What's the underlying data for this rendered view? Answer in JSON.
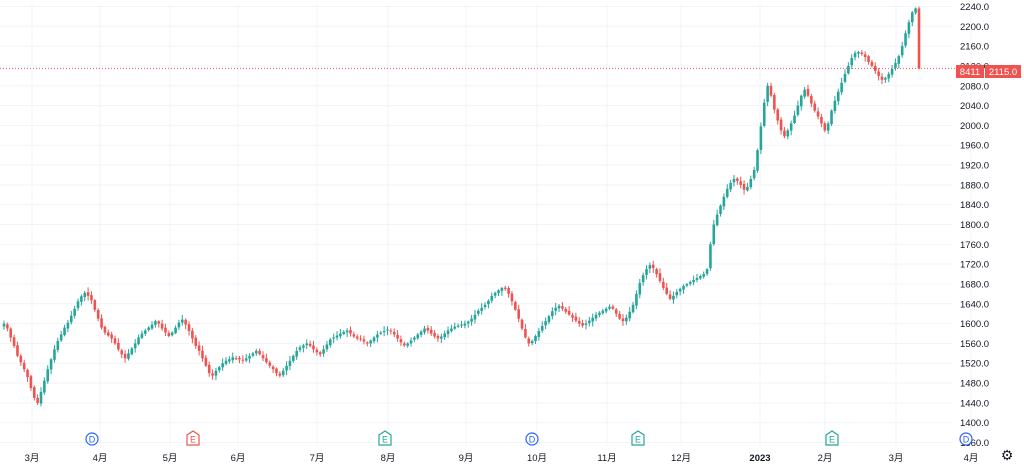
{
  "colors": {
    "up": "#26a69a",
    "down": "#ef5350",
    "grid": "#f0f3fa",
    "text": "#131722",
    "div": "#2962ff",
    "earn_pos": "#26a69a",
    "earn_neg": "#ef5350"
  },
  "price_tag": {
    "volume": "8411",
    "price": "2115.0"
  },
  "settings_icon": "gear-icon",
  "chart_data": {
    "type": "candlestick",
    "y_axis": {
      "ticks": [
        2240,
        2200,
        2160,
        2120,
        2080,
        2040,
        2000,
        1960,
        1920,
        1880,
        1840,
        1800,
        1760,
        1720,
        1680,
        1640,
        1600,
        1560,
        1520,
        1480,
        1440,
        1400,
        1360
      ],
      "tick_labels": [
        "2240.0",
        "2200.0",
        "2160.0",
        "2120.0",
        "2080.0",
        "2040.0",
        "2000.0",
        "1960.0",
        "1920.0",
        "1880.0",
        "1840.0",
        "1800.0",
        "1760.0",
        "1720.0",
        "1680.0",
        "1640.0",
        "1600.0",
        "1560.0",
        "1520.0",
        "1480.0",
        "1440.0",
        "1400.0",
        "1360.0"
      ],
      "range": [
        1353,
        2245
      ]
    },
    "x_axis": {
      "labels": [
        "3月",
        "4月",
        "5月",
        "6月",
        "7月",
        "8月",
        "9月",
        "10月",
        "11月",
        "12月",
        "2023",
        "2月",
        "3月",
        "4月"
      ],
      "bold": [
        "2023"
      ]
    },
    "last_price": 2115,
    "events": [
      {
        "type": "D",
        "label": "D",
        "month": "4月"
      },
      {
        "type": "E",
        "label": "E",
        "month": "5月",
        "result": "negative"
      },
      {
        "type": "E",
        "label": "E",
        "month": "8月",
        "result": "positive"
      },
      {
        "type": "D",
        "label": "D",
        "month": "10月"
      },
      {
        "type": "E",
        "label": "E",
        "month": "11月",
        "result": "positive"
      },
      {
        "type": "E",
        "label": "E",
        "month": "2月",
        "result": "positive"
      },
      {
        "type": "D",
        "label": "D",
        "month": "4月"
      }
    ],
    "close": [
      1600,
      1590,
      1572,
      1555,
      1535,
      1522,
      1508,
      1492,
      1470,
      1450,
      1440,
      1462,
      1485,
      1508,
      1528,
      1548,
      1565,
      1578,
      1592,
      1602,
      1616,
      1630,
      1645,
      1655,
      1662,
      1656,
      1647,
      1628,
      1610,
      1592,
      1582,
      1576,
      1570,
      1560,
      1548,
      1538,
      1530,
      1540,
      1550,
      1560,
      1572,
      1580,
      1586,
      1592,
      1598,
      1605,
      1600,
      1590,
      1582,
      1575,
      1582,
      1592,
      1602,
      1608,
      1598,
      1585,
      1570,
      1555,
      1545,
      1530,
      1515,
      1500,
      1495,
      1505,
      1512,
      1520,
      1525,
      1528,
      1532,
      1530,
      1528,
      1526,
      1530,
      1535,
      1540,
      1545,
      1538,
      1530,
      1522,
      1515,
      1508,
      1500,
      1495,
      1505,
      1515,
      1525,
      1535,
      1545,
      1552,
      1556,
      1560,
      1555,
      1548,
      1542,
      1538,
      1548,
      1558,
      1568,
      1572,
      1576,
      1580,
      1583,
      1586,
      1580,
      1574,
      1570,
      1568,
      1564,
      1560,
      1566,
      1572,
      1578,
      1582,
      1585,
      1588,
      1585,
      1578,
      1570,
      1562,
      1556,
      1560,
      1566,
      1572,
      1578,
      1584,
      1590,
      1586,
      1580,
      1574,
      1570,
      1574,
      1580,
      1586,
      1590,
      1594,
      1596,
      1598,
      1600,
      1604,
      1610,
      1618,
      1626,
      1632,
      1638,
      1646,
      1656,
      1662,
      1667,
      1672,
      1670,
      1660,
      1645,
      1628,
      1610,
      1590,
      1572,
      1560,
      1565,
      1575,
      1585,
      1595,
      1605,
      1615,
      1625,
      1632,
      1636,
      1630,
      1624,
      1618,
      1612,
      1606,
      1600,
      1596,
      1600,
      1606,
      1612,
      1618,
      1622,
      1626,
      1630,
      1634,
      1630,
      1620,
      1610,
      1605,
      1612,
      1624,
      1638,
      1660,
      1682,
      1698,
      1710,
      1718,
      1712,
      1700,
      1686,
      1672,
      1660,
      1650,
      1656,
      1664,
      1670,
      1676,
      1680,
      1684,
      1688,
      1692,
      1696,
      1700,
      1710,
      1760,
      1800,
      1820,
      1838,
      1856,
      1872,
      1884,
      1892,
      1888,
      1880,
      1870,
      1876,
      1892,
      1910,
      1950,
      1998,
      2046,
      2080,
      2060,
      2032,
      2010,
      1990,
      1978,
      1990,
      2004,
      2020,
      2040,
      2060,
      2072,
      2060,
      2044,
      2030,
      2018,
      2004,
      1990,
      2004,
      2030,
      2050,
      2068,
      2086,
      2104,
      2120,
      2136,
      2146,
      2148,
      2144,
      2138,
      2128,
      2120,
      2110,
      2100,
      2092,
      2096,
      2104,
      2114,
      2126,
      2140,
      2160,
      2186,
      2208,
      2228,
      2236,
      2115
    ],
    "candles_note": "daily OHLC, values read from price axis"
  }
}
